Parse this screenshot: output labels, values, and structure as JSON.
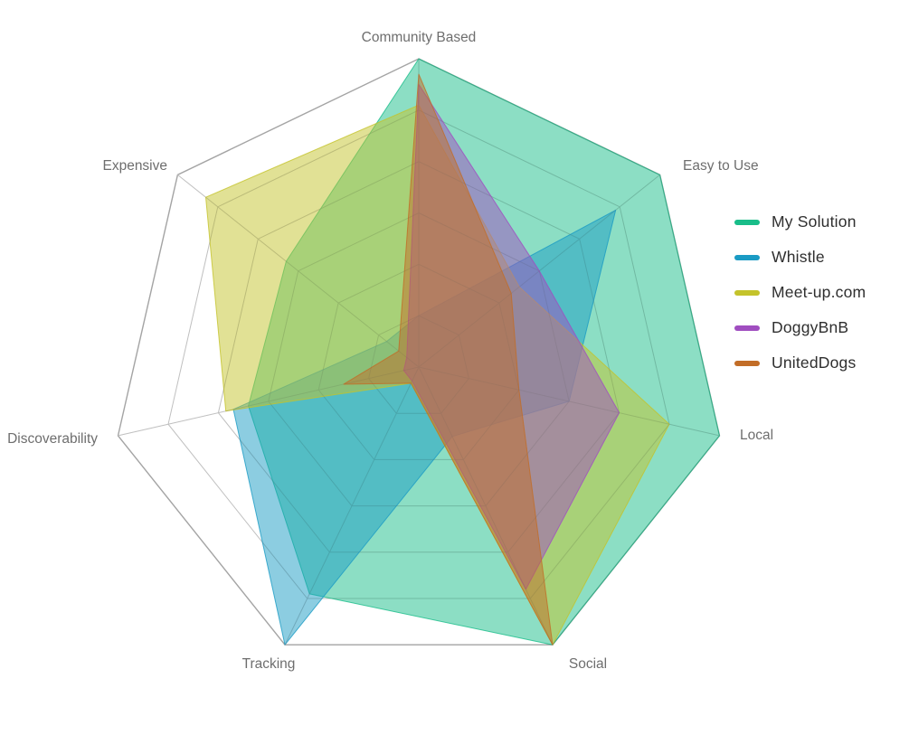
{
  "chart_data": {
    "type": "radar",
    "title": "",
    "categories": [
      "Community Based",
      "Easy to Use",
      "Local",
      "Social",
      "Tracking",
      "Discoverability",
      "Expensive"
    ],
    "series": [
      {
        "name": "My Solution",
        "color": "#19bd89",
        "values": [
          6,
          6,
          6,
          6,
          4.9,
          3.4,
          3.3
        ]
      },
      {
        "name": "Whistle",
        "color": "#1a9bc4",
        "values": [
          1,
          4.9,
          3,
          1.5,
          6,
          3.7,
          0.8
        ]
      },
      {
        "name": "Meet-up.com",
        "color": "#c4c32b",
        "values": [
          5.1,
          2.5,
          5,
          6,
          0.35,
          3.85,
          5.3
        ]
      },
      {
        "name": "DoggyBnB",
        "color": "#a04ec0",
        "values": [
          5.5,
          3,
          4,
          4.8,
          0.3,
          0.3,
          0.3
        ]
      },
      {
        "name": "UnitedDogs",
        "color": "#c26d27",
        "values": [
          5.7,
          2.3,
          2,
          6,
          0.35,
          1.5,
          0.5
        ]
      }
    ],
    "max": 6,
    "grid_levels": 6,
    "ylim": [
      0,
      6
    ],
    "grid": true,
    "legend_position": "right",
    "axis_label_color": "#6e6e6e",
    "grid_color": "#cdcdcd",
    "outer_ring_color": "#b0b0b0",
    "background": "#ffffff"
  }
}
